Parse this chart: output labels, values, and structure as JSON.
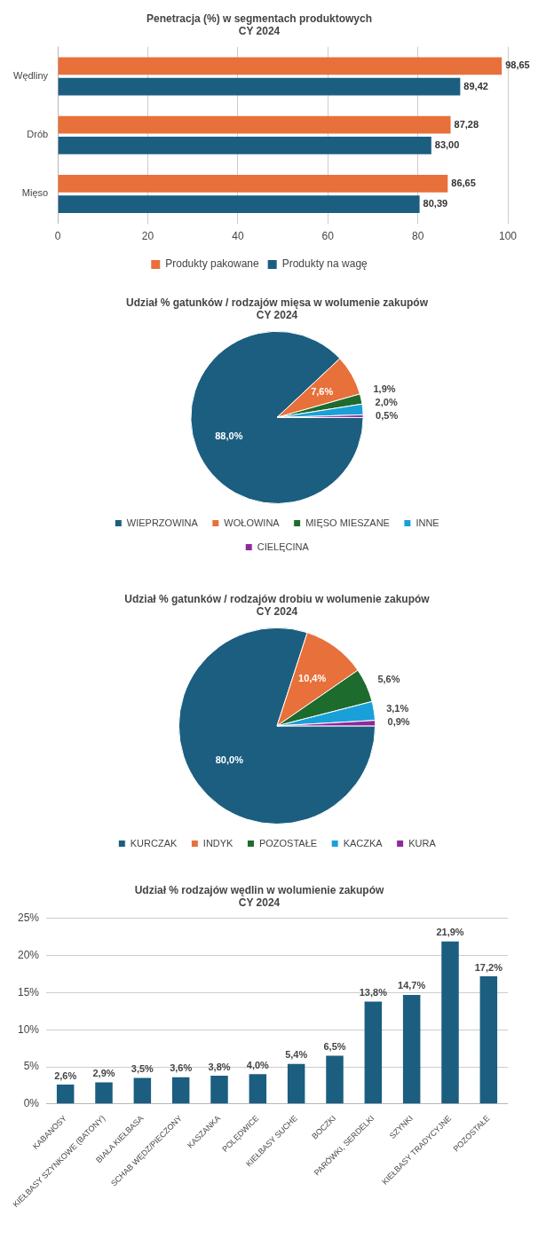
{
  "chart_data": [
    {
      "type": "bar",
      "orientation": "horizontal",
      "title": "Penetracja (%) w segmentach produktowych",
      "subtitle": "CY 2024",
      "categories": [
        "Wędliny",
        "Drób",
        "Mięso"
      ],
      "series": [
        {
          "name": "Produkty pakowane",
          "color": "#e8703a",
          "values": [
            98.65,
            87.28,
            86.65
          ],
          "value_labels": [
            "98,65",
            "87,28",
            "86,65"
          ]
        },
        {
          "name": "Produkty na wagę",
          "color": "#1b5e80",
          "values": [
            89.42,
            83.0,
            80.39
          ],
          "value_labels": [
            "89,42",
            "83,00",
            "80,39"
          ]
        }
      ],
      "xlim": [
        0,
        100
      ],
      "xticks": [
        0,
        20,
        40,
        60,
        80,
        100
      ],
      "grid": "x",
      "legend": "bottom"
    },
    {
      "type": "pie",
      "title": "Udział % gatunków / rodzajów mięsa w wolumenie zakupów",
      "subtitle": "CY 2024",
      "categories": [
        "WIEPRZOWINA",
        "WOŁOWINA",
        "MIĘSO MIESZANE",
        "INNE",
        "CIELĘCINA"
      ],
      "values": [
        88.0,
        7.6,
        1.9,
        2.0,
        0.5
      ],
      "value_labels": [
        "88,0%",
        "7,6%",
        "1,9%",
        "2,0%",
        "0,5%"
      ],
      "colors": [
        "#1b5e80",
        "#e8703a",
        "#1e6b2e",
        "#1aa0d8",
        "#8e2a9c"
      ],
      "legend": "bottom"
    },
    {
      "type": "pie",
      "title": "Udział % gatunków / rodzajów drobiu w wolumenie zakupów",
      "subtitle": "CY 2024",
      "categories": [
        "KURCZAK",
        "INDYK",
        "POZOSTAŁE",
        "KACZKA",
        "KURA"
      ],
      "values": [
        80.0,
        10.4,
        5.6,
        3.1,
        0.9
      ],
      "value_labels": [
        "80,0%",
        "10,4%",
        "5,6%",
        "3,1%",
        "0,9%"
      ],
      "colors": [
        "#1b5e80",
        "#e8703a",
        "#1e6b2e",
        "#1aa0d8",
        "#8e2a9c"
      ],
      "legend": "bottom"
    },
    {
      "type": "bar",
      "title": "Udział % rodzajów wędlin w wolumienie zakupów",
      "subtitle": "CY 2024",
      "categories": [
        "KABANOSY",
        "KIEŁBASY SZYNKOWE (BATONY)",
        "BIAŁA KIEŁBASA",
        "SCHAB WĘDZ/PIECZONY",
        "KASZANKA",
        "POLĘDWICE",
        "KIEŁBASY SUCHE",
        "BOCZKI",
        "PARÓWKI, SERDELKI",
        "SZYNKI",
        "KIEŁBASY TRADYCYJNE",
        "POZOSTAŁE"
      ],
      "series": [
        {
          "color": "#1b5e80",
          "values": [
            2.6,
            2.9,
            3.5,
            3.6,
            3.8,
            4.0,
            5.4,
            6.5,
            13.8,
            14.7,
            21.9,
            17.2
          ],
          "value_labels": [
            "2,6%",
            "2,9%",
            "3,5%",
            "3,6%",
            "3,8%",
            "4,0%",
            "5,4%",
            "6,5%",
            "13,8%",
            "14,7%",
            "21,9%",
            "17,2%"
          ]
        }
      ],
      "ylim": [
        0,
        25
      ],
      "yticks": [
        {
          "value": 0,
          "label": "0%"
        },
        {
          "value": 5,
          "label": "5%"
        },
        {
          "value": 10,
          "label": "10%"
        },
        {
          "value": 15,
          "label": "15%"
        },
        {
          "value": 20,
          "label": "20%"
        },
        {
          "value": 25,
          "label": "25%"
        }
      ],
      "grid": "y"
    }
  ]
}
